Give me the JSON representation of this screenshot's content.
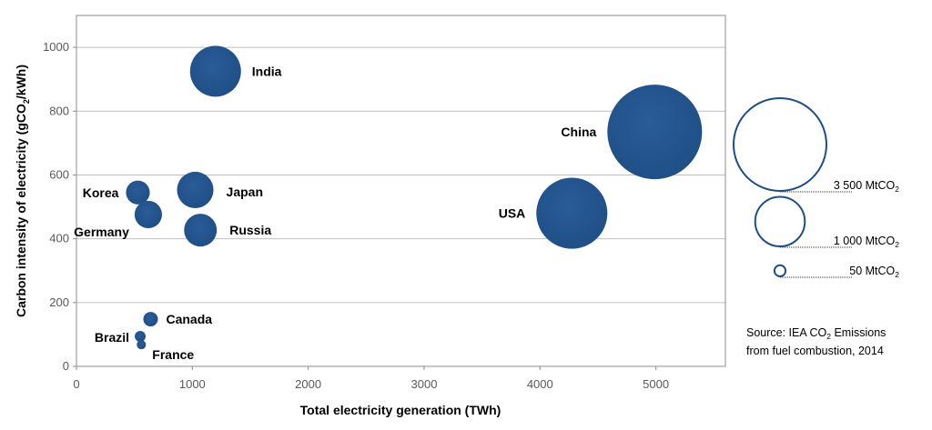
{
  "chart_data": {
    "type": "bubble",
    "title": "",
    "xlabel": "Total electricity generation (TWh)",
    "ylabel": "Carbon intensity of electricity (gCO2/kWh)",
    "ylabel_parts": {
      "before": "Carbon intensity of electricity (gCO",
      "sub": "2",
      "after": "/kWh)"
    },
    "xlim": [
      0,
      5600
    ],
    "ylim": [
      0,
      1100
    ],
    "xticks": [
      0,
      1000,
      2000,
      3000,
      4000,
      5000
    ],
    "yticks": [
      0,
      200,
      400,
      600,
      800,
      1000
    ],
    "grid": "horizontal",
    "bubble_color": "#1f4e85",
    "size_unit": "MtCO2",
    "points": [
      {
        "label": "India",
        "x": 1200,
        "y": 925,
        "size": 1055
      },
      {
        "label": "China",
        "x": 4990,
        "y": 735,
        "size": 3640
      },
      {
        "label": "USA",
        "x": 4275,
        "y": 480,
        "size": 2050
      },
      {
        "label": "Japan",
        "x": 1025,
        "y": 553,
        "size": 540
      },
      {
        "label": "Korea",
        "x": 530,
        "y": 545,
        "size": 230
      },
      {
        "label": "Germany",
        "x": 620,
        "y": 476,
        "size": 305
      },
      {
        "label": "Russia",
        "x": 1070,
        "y": 427,
        "size": 435
      },
      {
        "label": "Canada",
        "x": 640,
        "y": 148,
        "size": 86
      },
      {
        "label": "Brazil",
        "x": 550,
        "y": 94,
        "size": 48
      },
      {
        "label": "France",
        "x": 560,
        "y": 68,
        "size": 34
      }
    ],
    "size_legend": [
      {
        "value": 3500,
        "label": "3 500 MtCO",
        "sub": "2"
      },
      {
        "value": 1000,
        "label": "1 000 MtCO",
        "sub": "2"
      },
      {
        "value": 50,
        "label": "50 MtCO",
        "sub": "2"
      }
    ],
    "source": {
      "line1_before": "Source: IEA CO",
      "line1_sub": "2",
      "line1_after": " Emissions",
      "line2": "from fuel combustion, 2014"
    }
  }
}
